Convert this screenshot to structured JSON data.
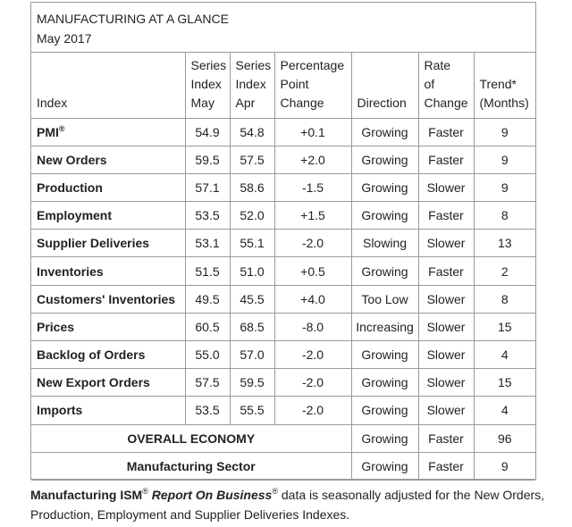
{
  "header": {
    "title": "MANUFACTURING AT A GLANCE",
    "subtitle": "May 2017"
  },
  "columns": {
    "index": "Index",
    "series_may": [
      "Series",
      "Index",
      "May"
    ],
    "series_apr": [
      "Series",
      "Index",
      "Apr"
    ],
    "pct_change": [
      "Percentage",
      "Point",
      "Change"
    ],
    "direction": "Direction",
    "rate": [
      "Rate",
      "of",
      "Change"
    ],
    "trend": [
      "Trend*",
      "(Months)"
    ]
  },
  "rows": [
    {
      "index": "PMI",
      "sup": "®",
      "may": "54.9",
      "apr": "54.8",
      "change": "+0.1",
      "direction": "Growing",
      "rate": "Faster",
      "trend": "9"
    },
    {
      "index": "New Orders",
      "may": "59.5",
      "apr": "57.5",
      "change": "+2.0",
      "direction": "Growing",
      "rate": "Faster",
      "trend": "9"
    },
    {
      "index": "Production",
      "may": "57.1",
      "apr": "58.6",
      "change": "-1.5",
      "direction": "Growing",
      "rate": "Slower",
      "trend": "9"
    },
    {
      "index": "Employment",
      "may": "53.5",
      "apr": "52.0",
      "change": "+1.5",
      "direction": "Growing",
      "rate": "Faster",
      "trend": "8"
    },
    {
      "index": "Supplier Deliveries",
      "may": "53.1",
      "apr": "55.1",
      "change": "-2.0",
      "direction": "Slowing",
      "rate": "Slower",
      "trend": "13"
    },
    {
      "index": "Inventories",
      "may": "51.5",
      "apr": "51.0",
      "change": "+0.5",
      "direction": "Growing",
      "rate": "Faster",
      "trend": "2"
    },
    {
      "index": "Customers' Inventories",
      "may": "49.5",
      "apr": "45.5",
      "change": "+4.0",
      "direction": "Too Low",
      "rate": "Slower",
      "trend": "8"
    },
    {
      "index": "Prices",
      "may": "60.5",
      "apr": "68.5",
      "change": "-8.0",
      "direction": "Increasing",
      "rate": "Slower",
      "trend": "15"
    },
    {
      "index": "Backlog of Orders",
      "may": "55.0",
      "apr": "57.0",
      "change": "-2.0",
      "direction": "Growing",
      "rate": "Slower",
      "trend": "4"
    },
    {
      "index": "New Export Orders",
      "may": "57.5",
      "apr": "59.5",
      "change": "-2.0",
      "direction": "Growing",
      "rate": "Slower",
      "trend": "15"
    },
    {
      "index": "Imports",
      "may": "53.5",
      "apr": "55.5",
      "change": "-2.0",
      "direction": "Growing",
      "rate": "Slower",
      "trend": "4"
    }
  ],
  "summary_rows": [
    {
      "label": "OVERALL ECONOMY",
      "direction": "Growing",
      "rate": "Faster",
      "trend": "96"
    },
    {
      "label": "Manufacturing Sector",
      "direction": "Growing",
      "rate": "Faster",
      "trend": "9"
    }
  ],
  "footnote": {
    "part1": "Manufacturing ISM",
    "sup1": "®",
    "part2": "Report On Business",
    "sup2": "®",
    "part3": " data is seasonally adjusted for the New Orders, Production, Employment and Supplier Deliveries Indexes."
  }
}
